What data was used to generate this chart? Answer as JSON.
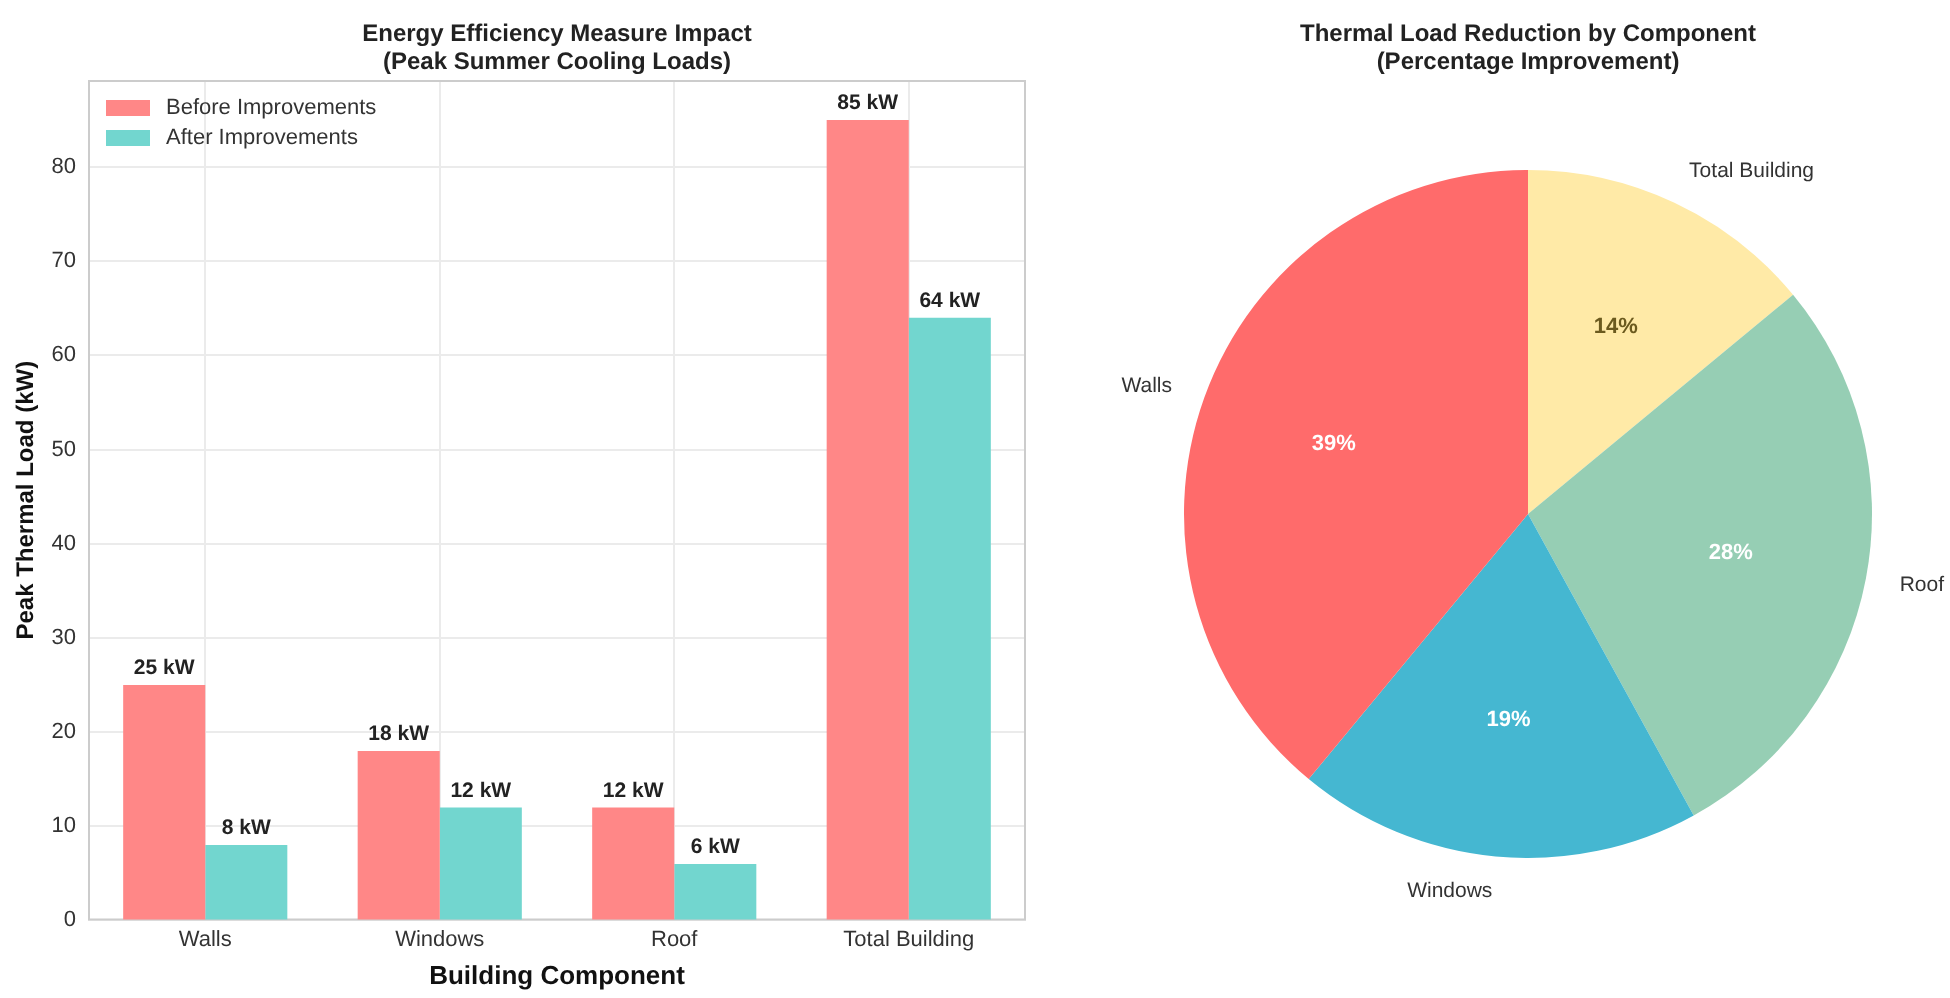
{
  "chart_data": [
    {
      "type": "bar",
      "title": "Energy Efficiency Measure Impact\n(Peak Summer Cooling Loads)",
      "xlabel": "Building Component",
      "ylabel": "Peak Thermal Load (kW)",
      "categories": [
        "Walls",
        "Windows",
        "Roof",
        "Total Building"
      ],
      "series": [
        {
          "name": "Before Improvements",
          "color": "#ff8787",
          "values": [
            25,
            18,
            12,
            85
          ],
          "value_labels": [
            "25 kW",
            "18 kW",
            "12 kW",
            "85 kW"
          ]
        },
        {
          "name": "After Improvements",
          "color": "#72d6cf",
          "values": [
            8,
            12,
            6,
            64
          ],
          "value_labels": [
            "8 kW",
            "12 kW",
            "6 kW",
            "64 kW"
          ]
        }
      ],
      "ylim": [
        0,
        89.25
      ],
      "yticks": [
        0,
        10,
        20,
        30,
        40,
        50,
        60,
        70,
        80
      ],
      "grid": true,
      "legend": "top left"
    },
    {
      "type": "pie",
      "title": "Thermal Load Reduction by Component\n(Percentage Improvement)",
      "categories": [
        "Walls",
        "Windows",
        "Roof",
        "Total Building"
      ],
      "values": [
        39,
        19,
        28,
        14
      ],
      "colors": [
        "#ff6b6b",
        "#45b7d1",
        "#96ceb4",
        "#ffeaa7"
      ],
      "value_labels": [
        "39%",
        "19%",
        "28%",
        "14%"
      ]
    }
  ]
}
